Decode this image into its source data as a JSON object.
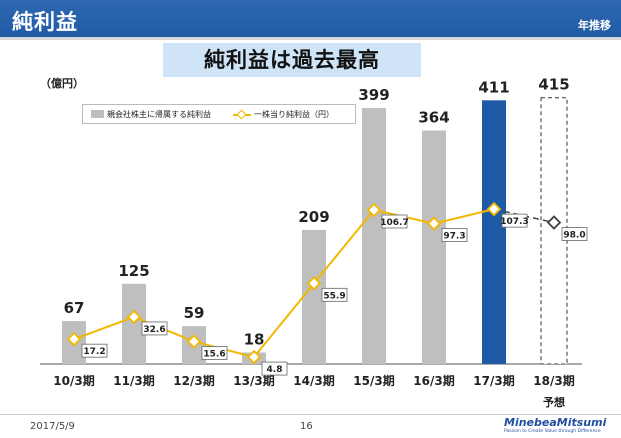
{
  "header": {
    "title": "純利益",
    "subtitle": "年推移",
    "banner": "純利益は過去最高"
  },
  "unit_label": "（億円）",
  "legend": {
    "bar": "親会社株主に帰属する純利益",
    "line": "一株当り純利益（円）"
  },
  "footer": {
    "date": "2017/5/9",
    "page": "16",
    "logo": "MinebeaMitsumi",
    "tagline": "Passion to Create Value through Difference"
  },
  "colors": {
    "bar": "#bfbfbf",
    "highlight": "#1f5aa6",
    "line": "#f2b800",
    "forecast": "#444444",
    "header": "#2f68b1"
  },
  "chart_data": {
    "type": "bar+line",
    "categories": [
      "10/3期",
      "11/3期",
      "12/3期",
      "13/3期",
      "14/3期",
      "15/3期",
      "16/3期",
      "17/3期",
      "18/3期"
    ],
    "category_notes": [
      "",
      "",
      "",
      "",
      "",
      "",
      "",
      "",
      "予想"
    ],
    "series": [
      {
        "name": "親会社株主に帰属する純利益",
        "type": "bar",
        "unit": "億円",
        "values": [
          67,
          125,
          59,
          18,
          209,
          399,
          364,
          411,
          415
        ],
        "highlight_index": 7,
        "forecast_index": 8
      },
      {
        "name": "一株当り純利益（円）",
        "type": "line",
        "unit": "円",
        "values": [
          17.2,
          32.6,
          15.6,
          4.8,
          55.9,
          106.7,
          97.3,
          107.3,
          98.0
        ],
        "forecast_index": 8
      }
    ],
    "bar_labels": [
      "67",
      "125",
      "59",
      "18",
      "209",
      "399",
      "364",
      "411",
      "415"
    ],
    "line_labels": [
      "17.2",
      "32.6",
      "15.6",
      "4.8",
      "55.9",
      "106.7",
      "97.3",
      "107.3",
      "98.0"
    ],
    "ylim": [
      0,
      425
    ],
    "line_ylim": [
      0,
      125
    ]
  }
}
